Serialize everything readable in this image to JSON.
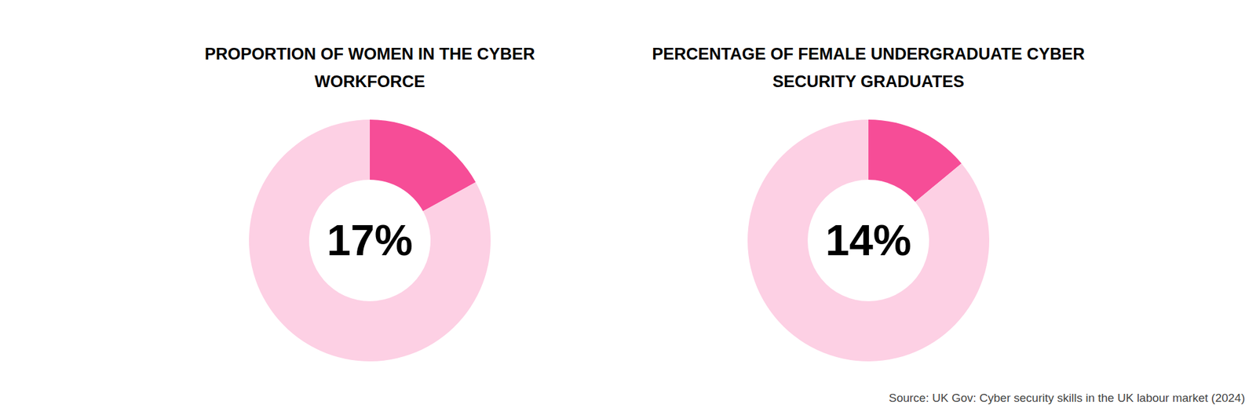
{
  "chart_data": [
    {
      "type": "pie",
      "title": "PROPORTION OF WOMEN IN THE CYBER WORKFORCE",
      "values": [
        17,
        83
      ],
      "value_labels": [
        "17%",
        null
      ],
      "colors": [
        "#f64d97",
        "#fdd0e4"
      ]
    },
    {
      "type": "pie",
      "title": "PERCENTAGE OF FEMALE UNDERGRADUATE CYBER SECURITY GRADUATES",
      "values": [
        14,
        86
      ],
      "value_labels": [
        "14%",
        null
      ],
      "colors": [
        "#f64d97",
        "#fdd0e4"
      ]
    }
  ],
  "source": "Source: UK Gov: Cyber security skills in the UK labour market (2024)"
}
